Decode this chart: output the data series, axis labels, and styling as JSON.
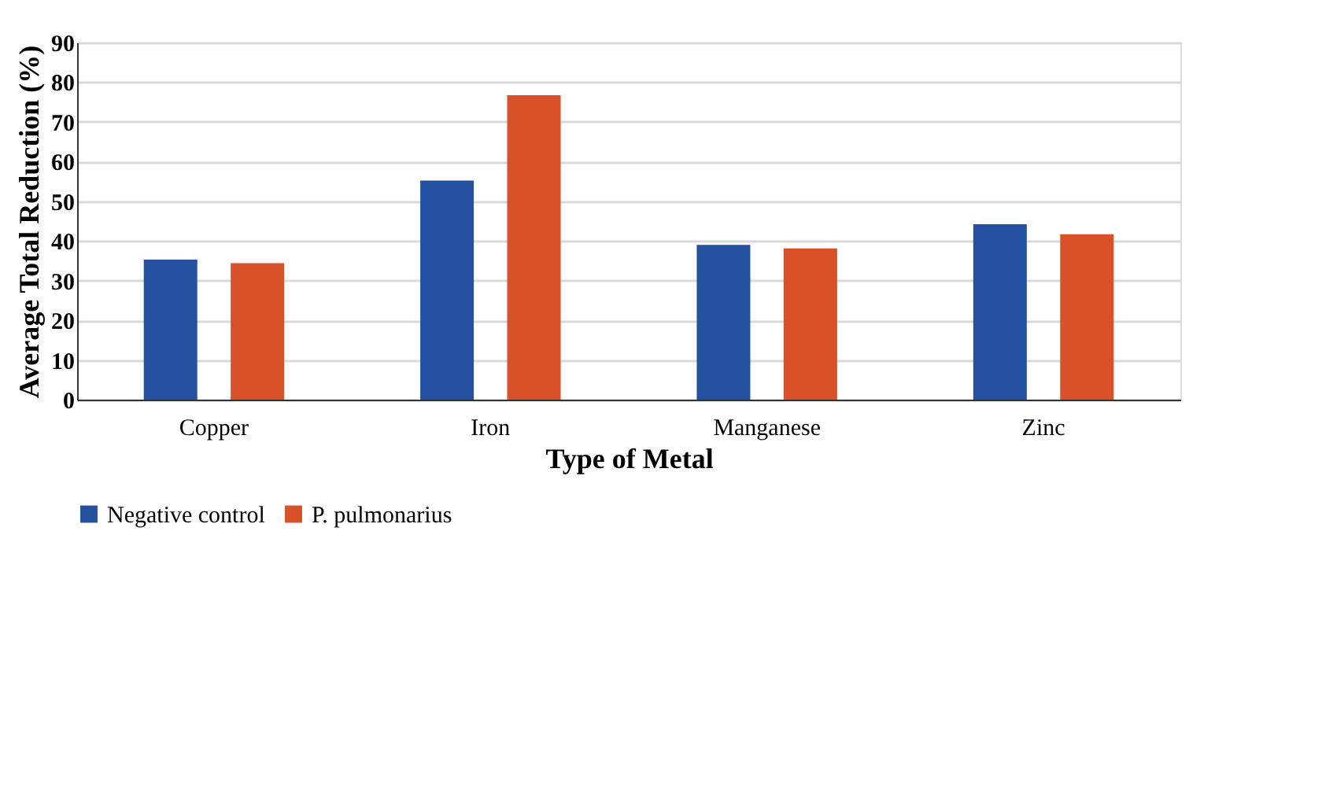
{
  "chart_data": {
    "type": "bar",
    "xlabel": "Type of Metal",
    "ylabel": "Average Total Reduction (%)",
    "categories": [
      "Copper",
      "Iron",
      "Manganese",
      "Zinc"
    ],
    "series": [
      {
        "name": "Negative control",
        "color": "#2451a0",
        "values": [
          35.3,
          55.2,
          39.0,
          44.2
        ]
      },
      {
        "name": "P. pulmonarius",
        "color": "#d85128",
        "values": [
          34.4,
          76.7,
          38.1,
          41.7
        ]
      }
    ],
    "ylim": [
      0,
      90
    ],
    "yticks": [
      0,
      10,
      20,
      30,
      40,
      50,
      60,
      70,
      80,
      90
    ],
    "grid": "y",
    "legend": "bottom"
  }
}
